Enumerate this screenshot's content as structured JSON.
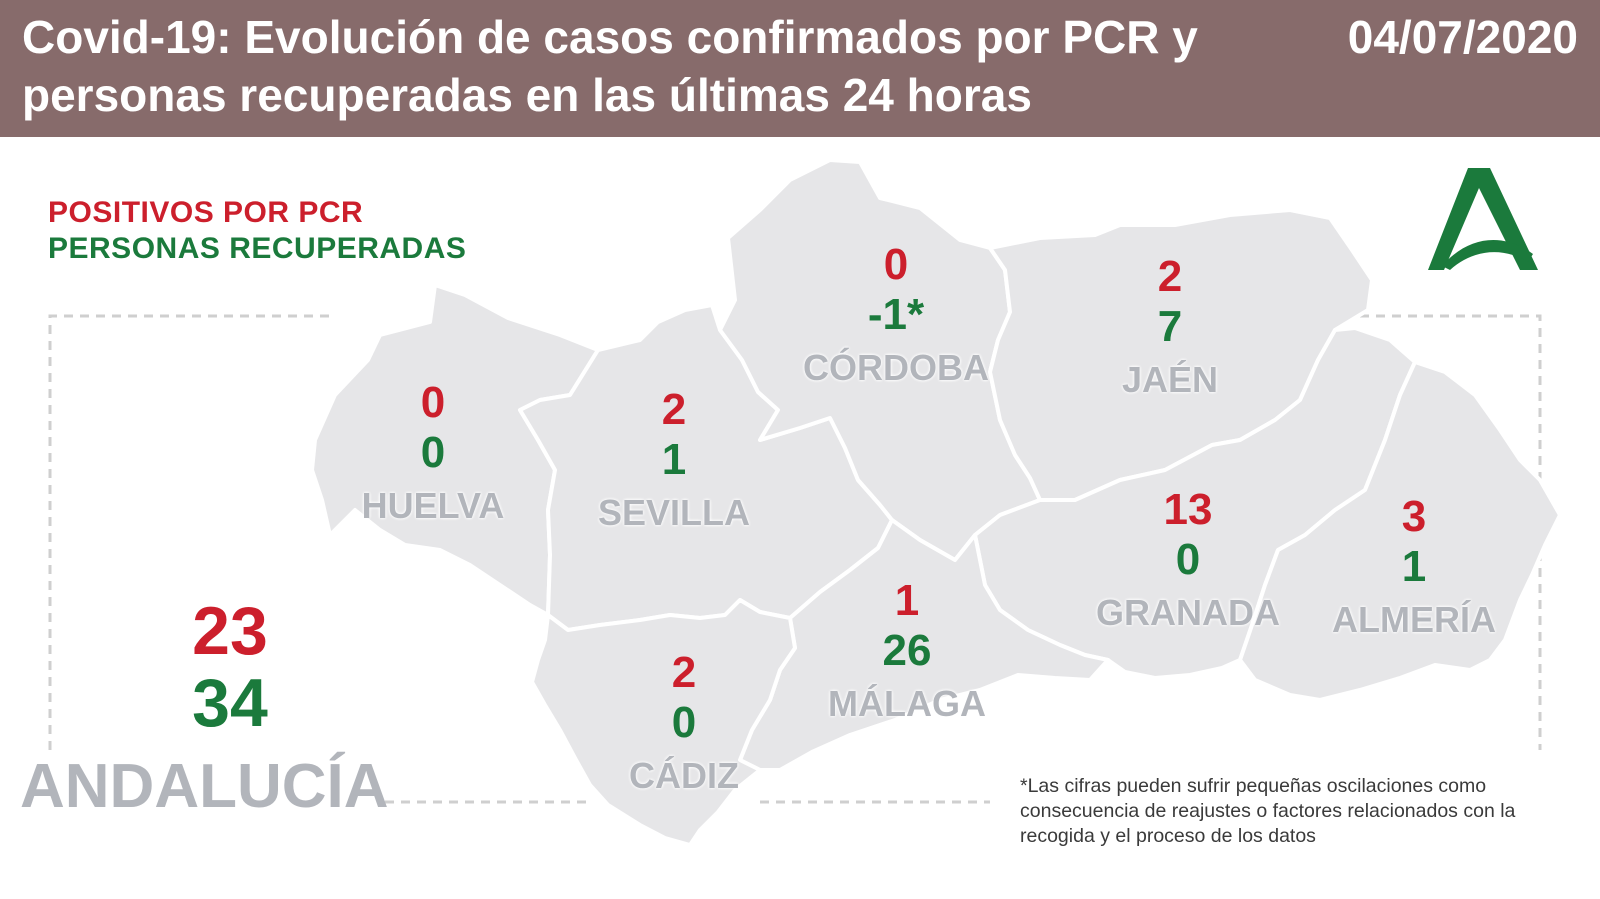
{
  "header": {
    "title": "Covid-19: Evolución de casos confirmados por PCR y personas recuperadas en las últimas 24 horas",
    "date": "04/07/2020"
  },
  "legend": {
    "positives": "POSITIVOS POR PCR",
    "recovered": "PERSONAS RECUPERADAS"
  },
  "colors": {
    "header_bg": "#876b6b",
    "positives": "#cc1f2c",
    "recovered": "#1b7a3c",
    "province_fill": "#e6e6e8",
    "province_label": "#b2b5bb",
    "logo": "#1b7a3c"
  },
  "provinces": {
    "huelva": {
      "name": "HUELVA",
      "positives": "0",
      "recovered": "0"
    },
    "sevilla": {
      "name": "SEVILLA",
      "positives": "2",
      "recovered": "1"
    },
    "cordoba": {
      "name": "CÓRDOBA",
      "positives": "0",
      "recovered": "-1*"
    },
    "jaen": {
      "name": "JAÉN",
      "positives": "2",
      "recovered": "7"
    },
    "granada": {
      "name": "GRANADA",
      "positives": "13",
      "recovered": "0"
    },
    "almeria": {
      "name": "ALMERÍA",
      "positives": "3",
      "recovered": "1"
    },
    "malaga": {
      "name": "MÁLAGA",
      "positives": "1",
      "recovered": "26"
    },
    "cadiz": {
      "name": "CÁDIZ",
      "positives": "2",
      "recovered": "0"
    }
  },
  "total": {
    "name": "ANDALUCÍA",
    "positives": "23",
    "recovered": "34"
  },
  "footnote": "*Las cifras pueden sufrir pequeñas oscilaciones como consecuencia de reajustes o factores relacionados con la recogida y el proceso de los datos",
  "logo_icon": "junta-de-andalucia-logo-icon"
}
